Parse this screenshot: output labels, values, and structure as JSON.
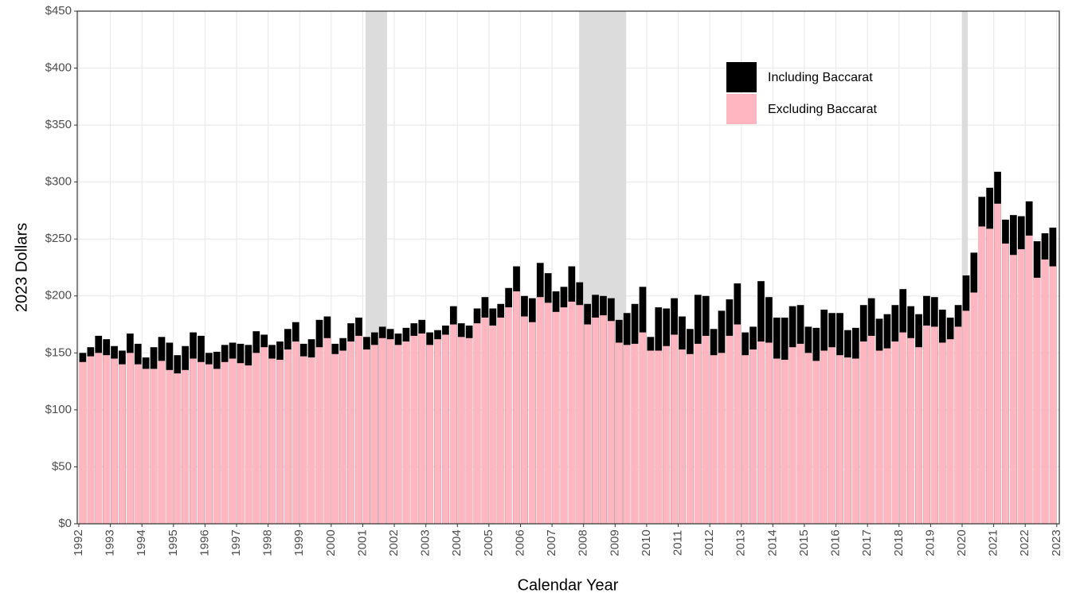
{
  "chart_data": {
    "type": "bar",
    "ylabel": "2023 Dollars",
    "xlabel": "Calendar Year",
    "x": [
      1992.125,
      1992.375,
      1992.625,
      1992.875,
      1993.125,
      1993.375,
      1993.625,
      1993.875,
      1994.125,
      1994.375,
      1994.625,
      1994.875,
      1995.125,
      1995.375,
      1995.625,
      1995.875,
      1996.125,
      1996.375,
      1996.625,
      1996.875,
      1997.125,
      1997.375,
      1997.625,
      1997.875,
      1998.125,
      1998.375,
      1998.625,
      1998.875,
      1999.125,
      1999.375,
      1999.625,
      1999.875,
      2000.125,
      2000.375,
      2000.625,
      2000.875,
      2001.125,
      2001.375,
      2001.625,
      2001.875,
      2002.125,
      2002.375,
      2002.625,
      2002.875,
      2003.125,
      2003.375,
      2003.625,
      2003.875,
      2004.125,
      2004.375,
      2004.625,
      2004.875,
      2005.125,
      2005.375,
      2005.625,
      2005.875,
      2006.125,
      2006.375,
      2006.625,
      2006.875,
      2007.125,
      2007.375,
      2007.625,
      2007.875,
      2008.125,
      2008.375,
      2008.625,
      2008.875,
      2009.125,
      2009.375,
      2009.625,
      2009.875,
      2010.125,
      2010.375,
      2010.625,
      2010.875,
      2011.125,
      2011.375,
      2011.625,
      2011.875,
      2012.125,
      2012.375,
      2012.625,
      2012.875,
      2013.125,
      2013.375,
      2013.625,
      2013.875,
      2014.125,
      2014.375,
      2014.625,
      2014.875,
      2015.125,
      2015.375,
      2015.625,
      2015.875,
      2016.125,
      2016.375,
      2016.625,
      2016.875,
      2017.125,
      2017.375,
      2017.625,
      2017.875,
      2018.125,
      2018.375,
      2018.625,
      2018.875,
      2019.125,
      2019.375,
      2019.625,
      2019.875,
      2020.125,
      2020.375,
      2020.625,
      2020.875,
      2021.125,
      2021.375,
      2021.625,
      2021.875,
      2022.125,
      2022.375,
      2022.625,
      2022.875
    ],
    "series": [
      {
        "name": "Including Baccarat",
        "color": "#000000",
        "values": [
          150,
          155,
          165,
          162,
          156,
          152,
          167,
          158,
          146,
          155,
          164,
          159,
          148,
          156,
          168,
          165,
          150,
          151,
          157,
          159,
          158,
          157,
          169,
          166,
          157,
          160,
          171,
          177,
          158,
          162,
          179,
          182,
          158,
          163,
          176,
          181,
          164,
          168,
          173,
          171,
          167,
          172,
          176,
          179,
          168,
          170,
          174,
          191,
          176,
          174,
          189,
          199,
          189,
          193,
          207,
          226,
          200,
          198,
          229,
          220,
          204,
          208,
          226,
          212,
          193,
          201,
          200,
          198,
          179,
          185,
          193,
          208,
          164,
          190,
          189,
          198,
          182,
          171,
          201,
          200,
          171,
          187,
          197,
          211,
          168,
          173,
          213,
          199,
          181,
          181,
          191,
          192,
          173,
          172,
          188,
          185,
          185,
          170,
          172,
          192,
          198,
          180,
          184,
          192,
          206,
          191,
          184,
          200,
          199,
          188,
          181,
          192,
          218,
          238,
          287,
          295,
          309,
          267,
          271,
          270,
          283,
          248,
          255,
          260
        ]
      },
      {
        "name": "Excluding Baccarat",
        "color": "#ffb6c1",
        "values": [
          142,
          147,
          150,
          148,
          145,
          140,
          150,
          140,
          136,
          136,
          143,
          135,
          132,
          135,
          145,
          142,
          140,
          136,
          142,
          145,
          141,
          139,
          150,
          155,
          145,
          144,
          153,
          160,
          147,
          146,
          155,
          163,
          149,
          152,
          160,
          165,
          153,
          157,
          163,
          162,
          157,
          160,
          165,
          167,
          157,
          162,
          166,
          175,
          164,
          163,
          176,
          181,
          174,
          181,
          190,
          204,
          182,
          177,
          199,
          194,
          186,
          190,
          195,
          192,
          175,
          181,
          183,
          178,
          159,
          157,
          158,
          168,
          152,
          152,
          156,
          166,
          153,
          149,
          158,
          165,
          148,
          150,
          165,
          175,
          148,
          153,
          160,
          159,
          145,
          144,
          155,
          158,
          150,
          143,
          152,
          155,
          148,
          146,
          145,
          160,
          165,
          152,
          154,
          160,
          168,
          163,
          155,
          174,
          173,
          159,
          162,
          173,
          187,
          203,
          261,
          259,
          281,
          246,
          236,
          241,
          253,
          216,
          232,
          226
        ]
      }
    ],
    "shaded_x": [
      [
        2001.09,
        2001.77
      ],
      [
        2007.86,
        2009.35
      ],
      [
        2020.0,
        2020.18
      ]
    ],
    "xlim": [
      1991.95,
      2023.08
    ],
    "xticks": [
      1992,
      1993,
      1994,
      1995,
      1996,
      1997,
      1998,
      1999,
      2000,
      2001,
      2002,
      2003,
      2004,
      2005,
      2006,
      2007,
      2008,
      2009,
      2010,
      2011,
      2012,
      2013,
      2014,
      2015,
      2016,
      2017,
      2018,
      2019,
      2020,
      2021,
      2022,
      2023
    ],
    "ylim": [
      0,
      450
    ],
    "yticks": [
      {
        "value": 0,
        "label": "$0"
      },
      {
        "value": 50,
        "label": "$50"
      },
      {
        "value": 100,
        "label": "$100"
      },
      {
        "value": 150,
        "label": "$150"
      },
      {
        "value": 200,
        "label": "$200"
      },
      {
        "value": 250,
        "label": "$250"
      },
      {
        "value": 300,
        "label": "$300"
      },
      {
        "value": 350,
        "label": "$350"
      },
      {
        "value": 400,
        "label": "$400"
      },
      {
        "value": 450,
        "label": "$450"
      }
    ],
    "grid": true,
    "legend": "top-right"
  }
}
